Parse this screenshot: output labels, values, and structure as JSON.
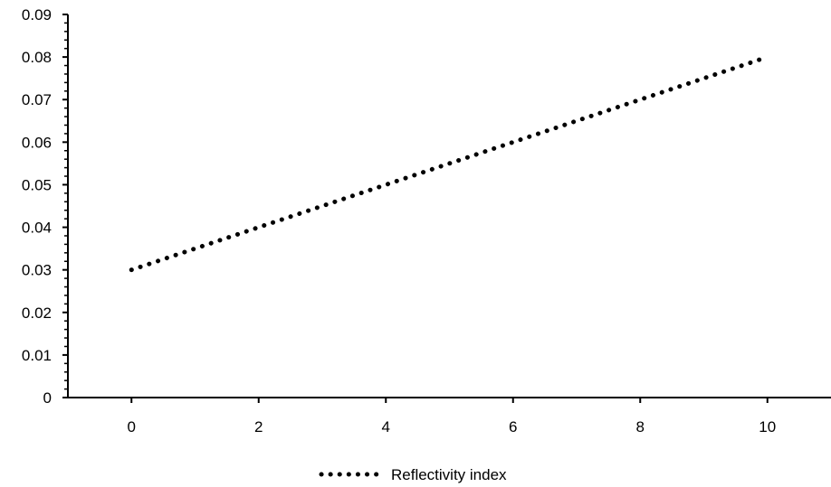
{
  "chart_data": {
    "type": "line",
    "title": "",
    "xlabel": "",
    "ylabel": "",
    "x": [
      0,
      1,
      2,
      3,
      4,
      5,
      6,
      7,
      8,
      9,
      10
    ],
    "series": [
      {
        "name": "Reflectivity index",
        "values": [
          0.03,
          0.035,
          0.04,
          0.045,
          0.05,
          0.055,
          0.06,
          0.065,
          0.07,
          0.075,
          0.08
        ],
        "color": "#000000",
        "line_style": "dotted"
      }
    ],
    "xlim": [
      -1,
      11
    ],
    "ylim": [
      0,
      0.09
    ],
    "x_ticks": [
      "0",
      "2",
      "4",
      "6",
      "8",
      "10"
    ],
    "y_ticks": [
      "0",
      "0.01",
      "0.02",
      "0.03",
      "0.04",
      "0.05",
      "0.06",
      "0.07",
      "0.08",
      "0.09"
    ],
    "grid": false,
    "legend_position": "bottom"
  }
}
